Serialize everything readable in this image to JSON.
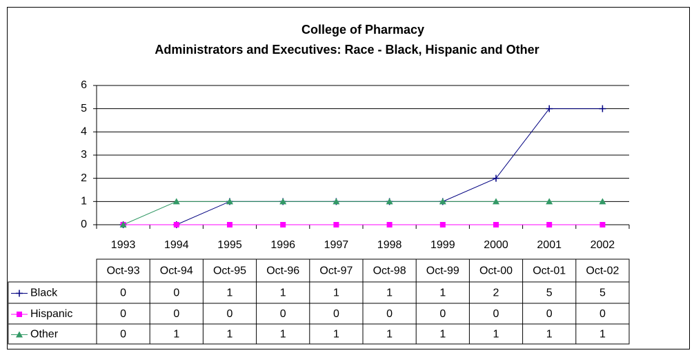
{
  "chart_data": {
    "type": "line",
    "title": "College of Pharmacy",
    "subtitle": "Administrators and Executives: Race - Black, Hispanic and Other",
    "categories": [
      "1993",
      "1994",
      "1995",
      "1996",
      "1997",
      "1998",
      "1999",
      "2000",
      "2001",
      "2002"
    ],
    "table_columns": [
      "Oct-93",
      "Oct-94",
      "Oct-95",
      "Oct-96",
      "Oct-97",
      "Oct-98",
      "Oct-99",
      "Oct-00",
      "Oct-01",
      "Oct-02"
    ],
    "series": [
      {
        "name": "Black",
        "color": "#000080",
        "marker": "plus",
        "values": [
          0,
          0,
          1,
          1,
          1,
          1,
          1,
          2,
          5,
          5
        ]
      },
      {
        "name": "Hispanic",
        "color": "#ff00ff",
        "marker": "square",
        "values": [
          0,
          0,
          0,
          0,
          0,
          0,
          0,
          0,
          0,
          0
        ]
      },
      {
        "name": "Other",
        "color": "#339966",
        "marker": "triangle",
        "values": [
          0,
          1,
          1,
          1,
          1,
          1,
          1,
          1,
          1,
          1
        ]
      }
    ],
    "ylim": [
      0,
      6
    ],
    "yticks": [
      0,
      1,
      2,
      3,
      4,
      5,
      6
    ],
    "grid": true
  }
}
